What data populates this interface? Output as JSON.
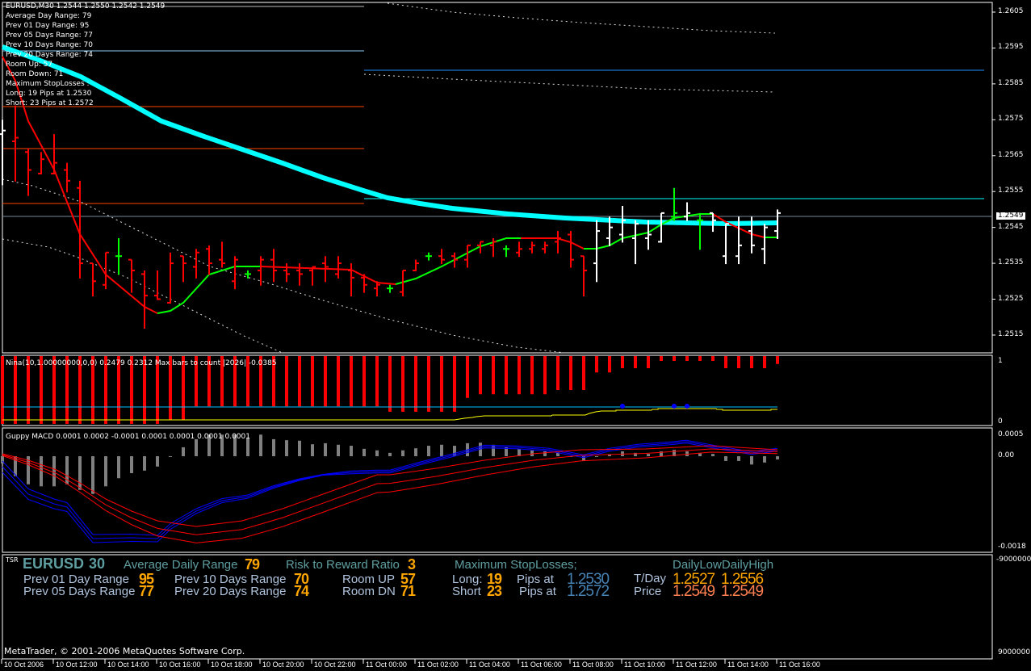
{
  "chart_header": "EURUSD,M30  1.2544 1.2550 1.2542 1.2549",
  "info_lines": [
    "Average Day  Range: 79",
    "Prev 01  Day  Range: 95",
    "Prev 05  Days Range: 77",
    "Prev 10  Days Range: 70",
    "Prev 20  Days Range: 74",
    "Room Up:     57",
    "Room Down: 71",
    "Maximum StopLosses :",
    "Long:  19 Pips at 1.2530",
    "Short: 23 Pips at 1.2572"
  ],
  "price_axis": [
    "1.2605",
    "1.2595",
    "1.2585",
    "1.2575",
    "1.2565",
    "1.2555",
    "1.2545",
    "1.2535",
    "1.2525",
    "1.2515"
  ],
  "current_price": "1.2549",
  "colors": {
    "bull": "#ffffff",
    "bear": "#ff0000",
    "neutral": "#00ff00",
    "ema": "#00ffff",
    "grid": "#ffffff"
  },
  "bars": [
    [
      1.2571,
      1.2575,
      1.2557,
      1.2572,
      "w"
    ],
    [
      1.2569,
      1.2579,
      1.2558,
      1.257,
      "r"
    ],
    [
      1.2566,
      1.2567,
      1.2554,
      1.2561,
      "r"
    ],
    [
      1.256,
      1.2566,
      1.256,
      1.2564,
      "r"
    ],
    [
      1.256,
      1.2571,
      1.256,
      1.2563,
      "r"
    ],
    [
      1.2561,
      1.2563,
      1.2555,
      1.2558,
      "r"
    ],
    [
      1.2556,
      1.2558,
      1.2531,
      1.2535,
      "r"
    ],
    [
      1.2535,
      1.2535,
      1.2526,
      1.253,
      "r"
    ],
    [
      1.2529,
      1.2538,
      1.2528,
      1.2538,
      "r"
    ],
    [
      1.2537,
      1.2542,
      1.2532,
      1.2537,
      "g"
    ],
    [
      1.2536,
      1.2536,
      1.2527,
      1.2533,
      "r"
    ],
    [
      1.2532,
      1.2533,
      1.2517,
      1.2526,
      "r"
    ],
    [
      1.2526,
      1.2533,
      1.2525,
      1.2525,
      "r"
    ],
    [
      1.2524,
      1.2538,
      1.2524,
      1.2535,
      "r"
    ],
    [
      1.2537,
      1.2537,
      1.253,
      1.2535,
      "r"
    ],
    [
      1.2534,
      1.2539,
      1.2531,
      1.2538,
      "r"
    ],
    [
      1.2539,
      1.254,
      1.2532,
      1.2535,
      "r"
    ],
    [
      1.2536,
      1.2541,
      1.2534,
      1.2535,
      "r"
    ],
    [
      1.253,
      1.2537,
      1.2528,
      1.2536,
      "r"
    ],
    [
      1.2532,
      1.2533,
      1.2531,
      1.2532,
      "g"
    ],
    [
      1.2533,
      1.2537,
      1.2529,
      1.2536,
      "r"
    ],
    [
      1.2536,
      1.2539,
      1.253,
      1.2533,
      "r"
    ],
    [
      1.2533,
      1.2535,
      1.253,
      1.2532,
      "r"
    ],
    [
      1.2533,
      1.2535,
      1.2529,
      1.2532,
      "r"
    ],
    [
      1.2533,
      1.2534,
      1.2529,
      1.2534,
      "r"
    ],
    [
      1.2535,
      1.2537,
      1.253,
      1.2534,
      "r"
    ],
    [
      1.2532,
      1.2537,
      1.2531,
      1.2535,
      "r"
    ],
    [
      1.2533,
      1.2535,
      1.2526,
      1.2531,
      "r"
    ],
    [
      1.2531,
      1.2532,
      1.2527,
      1.2529,
      "r"
    ],
    [
      1.2528,
      1.253,
      1.2526,
      1.2529,
      "r"
    ],
    [
      1.2528,
      1.2529,
      1.2527,
      1.2528,
      "g"
    ],
    [
      1.2527,
      1.2533,
      1.2526,
      1.2533,
      "r"
    ],
    [
      1.2533,
      1.2536,
      1.2533,
      1.2535,
      "r"
    ],
    [
      1.2537,
      1.2538,
      1.2536,
      1.2537,
      "g"
    ],
    [
      1.2537,
      1.2539,
      1.2535,
      1.2536,
      "r"
    ],
    [
      1.2537,
      1.2538,
      1.2534,
      1.2536,
      "r"
    ],
    [
      1.2536,
      1.254,
      1.2534,
      1.254,
      "r"
    ],
    [
      1.254,
      1.2541,
      1.2538,
      1.2541,
      "r"
    ],
    [
      1.254,
      1.2542,
      1.2537,
      1.2541,
      "r"
    ],
    [
      1.2539,
      1.254,
      1.2537,
      1.2539,
      "g"
    ],
    [
      1.2538,
      1.2541,
      1.2537,
      1.2539,
      "r"
    ],
    [
      1.2539,
      1.2541,
      1.2538,
      1.254,
      "r"
    ],
    [
      1.2539,
      1.2541,
      1.2538,
      1.254,
      "r"
    ],
    [
      1.2541,
      1.2544,
      1.2538,
      1.2542,
      "r"
    ],
    [
      1.2543,
      1.2544,
      1.2534,
      1.2536,
      "r"
    ],
    [
      1.2537,
      1.2537,
      1.2526,
      1.2533,
      "r"
    ],
    [
      1.2535,
      1.2547,
      1.253,
      1.2544,
      "w"
    ],
    [
      1.2542,
      1.2548,
      1.254,
      1.2545,
      "w"
    ],
    [
      1.2543,
      1.2551,
      1.2541,
      1.2547,
      "w"
    ],
    [
      1.2542,
      1.2547,
      1.2535,
      1.2546,
      "w"
    ],
    [
      1.2542,
      1.2547,
      1.2539,
      1.2543,
      "w"
    ],
    [
      1.2541,
      1.2549,
      1.2541,
      1.2549,
      "w"
    ],
    [
      1.2548,
      1.2556,
      1.2547,
      1.2549,
      "g"
    ],
    [
      1.2548,
      1.2552,
      1.2547,
      1.2549,
      "w"
    ],
    [
      1.2547,
      1.2549,
      1.2539,
      1.2547,
      "g"
    ],
    [
      1.2549,
      1.2549,
      1.2544,
      1.2547,
      "w"
    ],
    [
      1.2537,
      1.2546,
      1.2535,
      1.2546,
      "w"
    ],
    [
      1.2537,
      1.2548,
      1.2535,
      1.254,
      "w"
    ],
    [
      1.2544,
      1.2548,
      1.2538,
      1.254,
      "w"
    ],
    [
      1.2539,
      1.2546,
      1.2535,
      1.2545,
      "w"
    ],
    [
      1.2544,
      1.255,
      1.2542,
      1.2549,
      "w"
    ]
  ],
  "nina": {
    "label": "Nina(10,1.00000000,0,0) 0.2479 0.2312  Max bars to count  |2026|  -0.0385",
    "axis": [
      "1",
      "0"
    ],
    "levels": [
      -0.04,
      -0.04,
      -0.04,
      -0.04,
      -0.04,
      -0.04,
      -0.04,
      -0.04,
      -0.04,
      -0.04,
      -0.04,
      -0.04,
      -0.04,
      0.03,
      0.03,
      0.25,
      0.25,
      0.25,
      0.25,
      0.25,
      0.25,
      0.25,
      0.25,
      0.25,
      0.25,
      0.25,
      0.25,
      0.25,
      0.25,
      0.25,
      0.16,
      0.16,
      0.16,
      0.16,
      0.16,
      0.16,
      0.39,
      0.45,
      0.45,
      0.45,
      0.45,
      0.45,
      0.45,
      0.52,
      0.52,
      0.52,
      0.81,
      0.81,
      0.88,
      0.88,
      0.88,
      1.0,
      1.0,
      1.0,
      1.0,
      1.0,
      0.88,
      0.88,
      0.88,
      0.88,
      0.95
    ],
    "signal_level": 0.24,
    "dots": [
      48,
      52,
      53
    ]
  },
  "macd": {
    "label": "Guppy MACD 0.0001 0.0002 -0.0001 0.0001 0.0001 0.0001 0.0001",
    "axis": [
      "0.0005",
      "0.00",
      "-0.0018"
    ],
    "hist": [
      -0.00016,
      -0.00041,
      -0.00057,
      -0.00061,
      -0.00061,
      -0.00057,
      -0.00068,
      -0.00076,
      -0.00061,
      -0.00045,
      -0.00035,
      -0.0003,
      -0.00022,
      -2e-05,
      0.00016,
      0.00032,
      0.00041,
      0.00041,
      0.00041,
      0.00035,
      0.00041,
      0.00032,
      0.0003,
      0.00029,
      0.00022,
      0.00024,
      0.00021,
      0.00019,
      0.00013,
      0.0001,
      5e-05,
      0.0001,
      0.00014,
      0.00019,
      0.00021,
      0.00019,
      0.00024,
      0.00025,
      0.00021,
      0.00016,
      0.00013,
      0.0001,
      8e-05,
      6e-05,
      -3e-05,
      -0.00011,
      -2e-05,
      2e-05,
      8e-05,
      5e-05,
      3e-05,
      8e-05,
      0.00011,
      8e-05,
      5e-05,
      3e-05,
      -0.00011,
      -0.00011,
      -0.00018,
      -0.00014,
      -8e-05
    ]
  },
  "tsr": {
    "tag": "TSR",
    "symbol": "EURUSD",
    "period": "30",
    "avg_label": "Average Daily Range",
    "avg_value": "79",
    "rr_label": "Risk to Reward Ratio",
    "rr_value": "3",
    "max_sl_label": "Maximum StopLosses;",
    "daily_header": "DailyLowDailyHigh",
    "prev01_label": "Prev 01 Day Range",
    "prev01_value": "95",
    "prev05_label": "Prev 05 Days Range",
    "prev05_value": "77",
    "prev10_label": "Prev 10 Days Range",
    "prev10_value": "70",
    "prev20_label": "Prev 20 Days Range",
    "prev20_value": "74",
    "room_up_label": "Room UP",
    "room_up_value": "57",
    "room_dn_label": "Room DN",
    "room_dn_value": "71",
    "long_label": "Long:",
    "long_value": "19",
    "short_label": "Short",
    "short_value": "23",
    "pips_at_label": "Pips at",
    "long_price": "1.2530",
    "short_price": "1.2572",
    "tday_label": "T/Day",
    "tday_low": "1.2527",
    "tday_high": "1.2556",
    "price_label": "Price",
    "price_low": "1.2549",
    "price_high": "1.2549",
    "axis_top": "-9000000",
    "axis_bottom": "9000000"
  },
  "copyright": "MetaTrader, © 2001-2006 MetaQuotes Software Corp.",
  "time_axis": [
    "10 Oct 2006",
    "10 Oct 12:00",
    "10 Oct 14:00",
    "10 Oct 16:00",
    "10 Oct 18:00",
    "10 Oct 20:00",
    "10 Oct 22:00",
    "11 Oct 00:00",
    "11 Oct 02:00",
    "11 Oct 04:00",
    "11 Oct 06:00",
    "11 Oct 08:00",
    "11 Oct 10:00",
    "11 Oct 12:00",
    "11 Oct 14:00",
    "11 Oct 16:00"
  ]
}
